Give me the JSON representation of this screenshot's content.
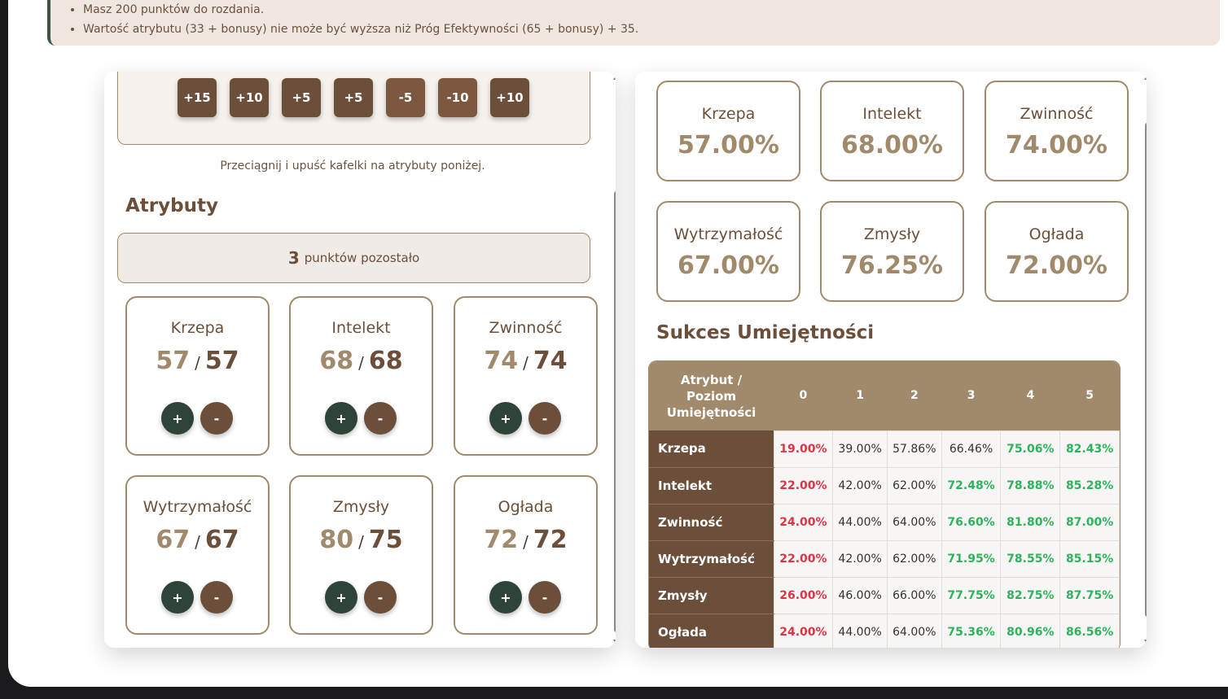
{
  "info": {
    "items": [
      "Masz 200 punktów do rozdania.",
      "Wartość atrybutu (33 + bonusy) nie może być wyższa niż Próg Efektywności (65 + bonusy) + 35."
    ]
  },
  "tiles": [
    {
      "label": "+15",
      "color": "#6b4f3a"
    },
    {
      "label": "+10",
      "color": "#6b4f3a"
    },
    {
      "label": "+5",
      "color": "#6b4f3a"
    },
    {
      "label": "+5",
      "color": "#6b4f3a"
    },
    {
      "label": "-5",
      "color": "#7d5840"
    },
    {
      "label": "-10",
      "color": "#7d5840"
    },
    {
      "label": "+10",
      "color": "#6b4f3a"
    }
  ],
  "hint": "Przeciągnij i upuść kafelki na atrybuty poniżej.",
  "attributes_title": "Atrybuty",
  "remaining": {
    "count": "3",
    "label": "punktów pozostało"
  },
  "attributes": [
    {
      "name": "Krzepa",
      "current": "57",
      "max": "57",
      "plus": "+",
      "minus": "-"
    },
    {
      "name": "Intelekt",
      "current": "68",
      "max": "68",
      "plus": "+",
      "minus": "-"
    },
    {
      "name": "Zwinność",
      "current": "74",
      "max": "74",
      "plus": "+",
      "minus": "-"
    },
    {
      "name": "Wytrzymałość",
      "current": "67",
      "max": "67",
      "plus": "+",
      "minus": "-"
    },
    {
      "name": "Zmysły",
      "current": "80",
      "max": "75",
      "plus": "+",
      "minus": "-"
    },
    {
      "name": "Ogłada",
      "current": "72",
      "max": "72",
      "plus": "+",
      "minus": "-"
    }
  ],
  "percentages": [
    {
      "name": "Krzepa",
      "value": "57.00%"
    },
    {
      "name": "Intelekt",
      "value": "68.00%"
    },
    {
      "name": "Zwinność",
      "value": "74.00%"
    },
    {
      "name": "Wytrzymałość",
      "value": "67.00%"
    },
    {
      "name": "Zmysły",
      "value": "76.25%"
    },
    {
      "name": "Ogłada",
      "value": "72.00%"
    }
  ],
  "skills_title": "Sukces Umiejętności",
  "table": {
    "corner": [
      "Atrybut /",
      "Poziom",
      "Umiejętności"
    ],
    "levels": [
      "0",
      "1",
      "2",
      "3",
      "4",
      "5"
    ],
    "rows": [
      {
        "name": "Krzepa",
        "cells": [
          [
            "19.00%",
            "red"
          ],
          [
            "39.00%",
            ""
          ],
          [
            "57.86%",
            ""
          ],
          [
            "66.46%",
            ""
          ],
          [
            "75.06%",
            "green"
          ],
          [
            "82.43%",
            "green"
          ]
        ]
      },
      {
        "name": "Intelekt",
        "cells": [
          [
            "22.00%",
            "red"
          ],
          [
            "42.00%",
            ""
          ],
          [
            "62.00%",
            ""
          ],
          [
            "72.48%",
            "green"
          ],
          [
            "78.88%",
            "green"
          ],
          [
            "85.28%",
            "green"
          ]
        ]
      },
      {
        "name": "Zwinność",
        "cells": [
          [
            "24.00%",
            "red"
          ],
          [
            "44.00%",
            ""
          ],
          [
            "64.00%",
            ""
          ],
          [
            "76.60%",
            "green"
          ],
          [
            "81.80%",
            "green"
          ],
          [
            "87.00%",
            "green"
          ]
        ]
      },
      {
        "name": "Wytrzymałość",
        "cells": [
          [
            "22.00%",
            "red"
          ],
          [
            "42.00%",
            ""
          ],
          [
            "62.00%",
            ""
          ],
          [
            "71.95%",
            "green"
          ],
          [
            "78.55%",
            "green"
          ],
          [
            "85.15%",
            "green"
          ]
        ]
      },
      {
        "name": "Zmysły",
        "cells": [
          [
            "26.00%",
            "red"
          ],
          [
            "46.00%",
            ""
          ],
          [
            "66.00%",
            ""
          ],
          [
            "77.75%",
            "green"
          ],
          [
            "82.75%",
            "green"
          ],
          [
            "87.75%",
            "green"
          ]
        ]
      },
      {
        "name": "Ogłada",
        "cells": [
          [
            "24.00%",
            "red"
          ],
          [
            "44.00%",
            ""
          ],
          [
            "64.00%",
            ""
          ],
          [
            "75.36%",
            "green"
          ],
          [
            "80.96%",
            "green"
          ],
          [
            "86.56%",
            "green"
          ]
        ]
      }
    ]
  }
}
